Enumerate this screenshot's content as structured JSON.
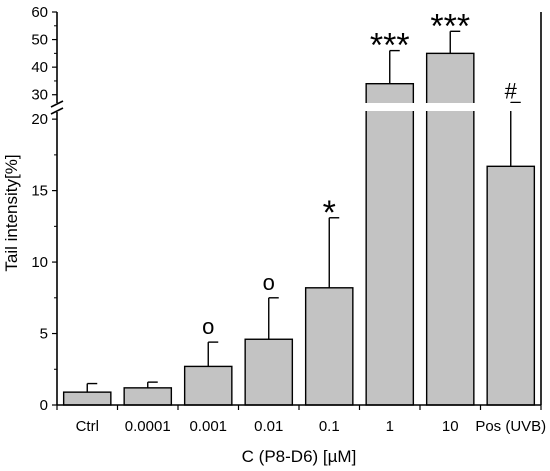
{
  "chart_data": {
    "type": "bar",
    "title": "",
    "xlabel": "C (P8-D6) [µM]",
    "ylabel": "Tail intensity[%]",
    "categories": [
      "Ctrl",
      "0.0001",
      "0.001",
      "0.01",
      "0.1",
      "1",
      "10",
      "Pos (UVB)"
    ],
    "values": [
      0.9,
      1.2,
      2.7,
      4.6,
      8.2,
      34,
      45,
      16.7
    ],
    "errors": [
      0.6,
      0.4,
      1.7,
      2.9,
      4.9,
      12,
      8,
      10.5
    ],
    "markers": [
      "",
      "",
      "o",
      "o",
      "*",
      "***",
      "***",
      "#"
    ],
    "ylim": [
      0,
      60
    ],
    "y_axis_break": {
      "lower_max": 20.5,
      "upper_min": 27,
      "upper_max": 60
    },
    "y_ticks_lower": [
      0,
      5,
      10,
      15,
      20
    ],
    "y_ticks_upper": [
      30,
      40,
      50,
      60
    ],
    "grid": false,
    "colors": {
      "bar_fill": "#c3c3c3",
      "bar_stroke": "#000000",
      "axis": "#000000"
    }
  }
}
